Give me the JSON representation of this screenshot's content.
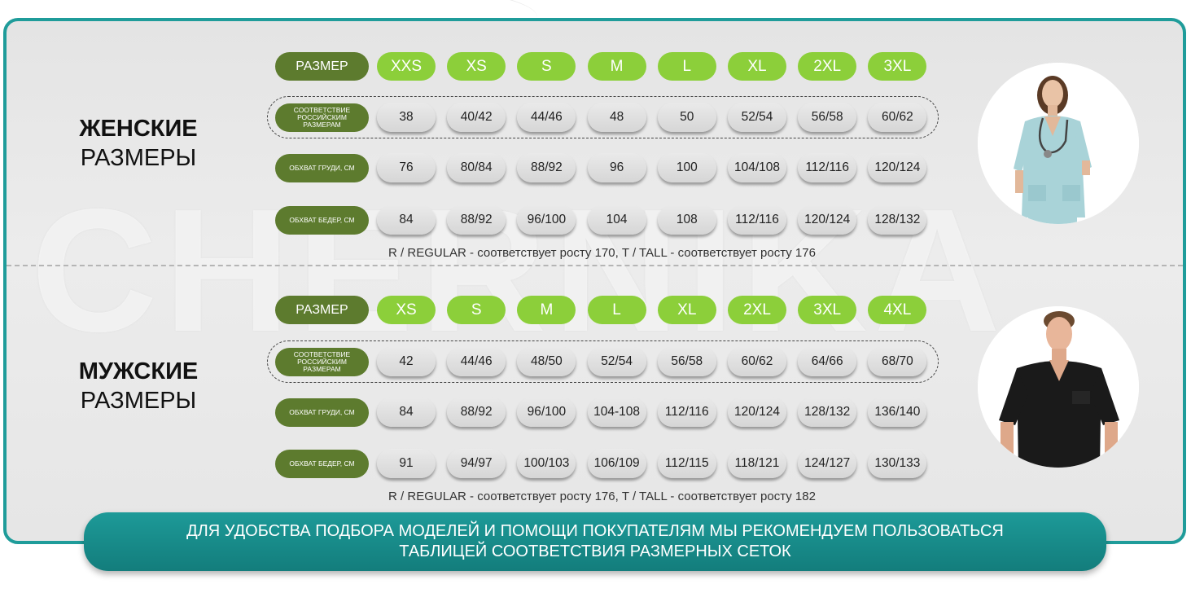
{
  "watermark": "CHERNIKA",
  "women": {
    "title_line1": "ЖЕНСКИЕ",
    "title_line2": "РАЗМЕРЫ",
    "size_label": "РАЗМЕР",
    "sizes": [
      "XXS",
      "XS",
      "S",
      "M",
      "L",
      "XL",
      "2XL",
      "3XL"
    ],
    "rows": [
      {
        "label": "СООТВЕТСТВИЕ РОССИЙСКИМ РАЗМЕРАМ",
        "values": [
          "38",
          "40/42",
          "44/46",
          "48",
          "50",
          "52/54",
          "56/58",
          "60/62"
        ]
      },
      {
        "label": "ОБХВАТ ГРУДИ, СМ",
        "values": [
          "76",
          "80/84",
          "88/92",
          "96",
          "100",
          "104/108",
          "112/116",
          "120/124"
        ]
      },
      {
        "label": "ОБХВАТ БЕДЕР, СМ",
        "values": [
          "84",
          "88/92",
          "96/100",
          "104",
          "108",
          "112/116",
          "120/124",
          "128/132"
        ]
      }
    ],
    "note": "R / REGULAR - соответствует росту 170, T / TALL - соответствует росту 176"
  },
  "men": {
    "title_line1": "МУЖСКИЕ",
    "title_line2": "РАЗМЕРЫ",
    "size_label": "РАЗМЕР",
    "sizes": [
      "XS",
      "S",
      "M",
      "L",
      "XL",
      "2XL",
      "3XL",
      "4XL"
    ],
    "rows": [
      {
        "label": "СООТВЕТСТВИЕ РОССИЙСКИМ РАЗМЕРАМ",
        "values": [
          "42",
          "44/46",
          "48/50",
          "52/54",
          "56/58",
          "60/62",
          "64/66",
          "68/70"
        ]
      },
      {
        "label": "ОБХВАТ ГРУДИ, СМ",
        "values": [
          "84",
          "88/92",
          "96/100",
          "104-108",
          "112/116",
          "120/124",
          "128/132",
          "136/140"
        ]
      },
      {
        "label": "ОБХВАТ БЕДЕР, СМ",
        "values": [
          "91",
          "94/97",
          "100/103",
          "106/109",
          "112/115",
          "118/121",
          "124/127",
          "130/133"
        ]
      }
    ],
    "note": "R / REGULAR - соответствует росту 176, T / TALL - соответствует росту 182"
  },
  "banner": {
    "line1": "ДЛЯ УДОБСТВА ПОДБОРА МОДЕЛЕЙ И ПОМОЩИ ПОКУПАТЕЛЯМ МЫ РЕКОМЕНДУЕМ ПОЛЬЗОВАТЬСЯ",
    "line2": "ТАБЛИЦЕЙ СООТВЕТСТВИЯ РАЗМЕРНЫХ СЕТОК"
  },
  "colors": {
    "frame": "#1f9c9a",
    "label_green": "#5d7b2e",
    "size_green": "#8ccf3a",
    "women_scrubs": "#a9d3d8",
    "men_scrubs": "#1a1a1a"
  }
}
